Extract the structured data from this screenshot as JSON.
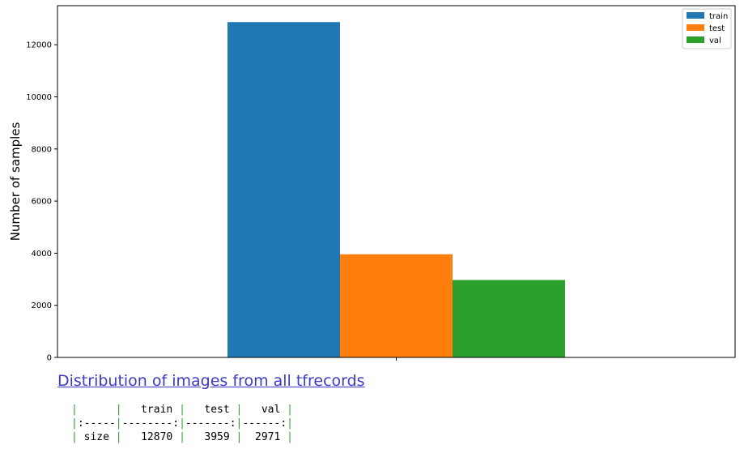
{
  "chart_data": {
    "type": "bar",
    "categories": [
      ""
    ],
    "series": [
      {
        "name": "train",
        "values": [
          12870
        ],
        "color": "#1f77b4"
      },
      {
        "name": "test",
        "values": [
          3959
        ],
        "color": "#ff7f0e"
      },
      {
        "name": "val",
        "values": [
          2971
        ],
        "color": "#2ca02c"
      }
    ],
    "title": "",
    "xlabel": "",
    "ylabel": "Number of samples",
    "ylim": [
      0,
      13500
    ],
    "yticks": [
      0,
      2000,
      4000,
      6000,
      8000,
      10000,
      12000
    ],
    "grid": false,
    "legend": "top-right"
  },
  "caption": "Distribution of images from all tfrecords",
  "table": {
    "header": [
      "",
      "train",
      "test",
      "val"
    ],
    "separator": [
      ":-----",
      "--------:",
      "-------:",
      "------:"
    ],
    "rows": [
      [
        "size",
        "12870",
        "3959",
        "2971"
      ]
    ]
  }
}
